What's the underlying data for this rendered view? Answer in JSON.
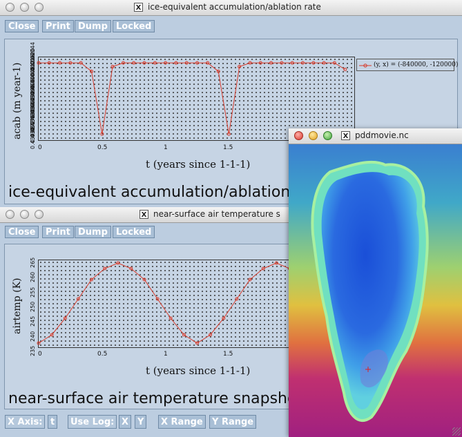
{
  "window1": {
    "title": "ice-equivalent accumulation/ablation rate",
    "toolbar": [
      "Close",
      "Print",
      "Dump",
      "Locked"
    ],
    "caption": "ice-equivalent accumulation/ablation",
    "legend_label": "(y, x) = (-840000, -120000)"
  },
  "window2": {
    "title": "near-surface air temperature s",
    "toolbar": [
      "Close",
      "Print",
      "Dump",
      "Locked"
    ],
    "caption": "near-surface air temperature snapsho",
    "bottom_bar": {
      "x_axis_label": "X Axis:",
      "x_axis_value": "t",
      "use_log_label": "Use Log:",
      "use_log_x": "X",
      "use_log_y": "Y",
      "x_range": "X Range",
      "y_range": "Y Range"
    }
  },
  "window3": {
    "title": "pddmovie.nc"
  },
  "icons": {
    "close": "close-dot-icon",
    "minimize": "minimize-dot-icon",
    "zoom": "zoom-dot-icon",
    "x11": "x11-icon",
    "resize": "resize-grip-icon"
  },
  "colors": {
    "series": "#d83a2a",
    "window_bg": "#bccde0",
    "button_bg": "#a9bfd6"
  },
  "chart_data": [
    {
      "type": "line",
      "xlabel": "t (years since 1-1-1)",
      "ylabel": "acab (m year-1)",
      "xticks": [
        "0",
        "0.5",
        "1",
        "1.5"
      ],
      "yticks": [
        "0.43968",
        "0.43972",
        "0.43976",
        "0.43980",
        "0.43984",
        "0.43988",
        "0.43992",
        "0.43996",
        "0.44000",
        "0.44004",
        "0.44008",
        "0.44012",
        "0.44016",
        "0.44020",
        "0.44044"
      ],
      "xlim": [
        0,
        2.5
      ],
      "ylim": [
        0.4396,
        0.4405
      ],
      "grid": true,
      "legend_position": "right",
      "series": [
        {
          "name": "(y, x) = (-840000, -120000)",
          "x": [
            0,
            0.083,
            0.167,
            0.25,
            0.333,
            0.417,
            0.5,
            0.583,
            0.667,
            0.75,
            0.833,
            0.917,
            1.0,
            1.083,
            1.167,
            1.25,
            1.333,
            1.417,
            1.5,
            1.583,
            1.667,
            1.75,
            1.833,
            1.917,
            2.0,
            2.083,
            2.167,
            2.25,
            2.333,
            2.417
          ],
          "y": [
            0.44044,
            0.44044,
            0.44044,
            0.44044,
            0.44044,
            0.44035,
            0.43968,
            0.4404,
            0.44044,
            0.44044,
            0.44044,
            0.44044,
            0.44044,
            0.44044,
            0.44044,
            0.44044,
            0.44044,
            0.44035,
            0.43968,
            0.4404,
            0.44044,
            0.44044,
            0.44044,
            0.44044,
            0.44044,
            0.44044,
            0.44044,
            0.44044,
            0.44044,
            0.44037
          ]
        }
      ]
    },
    {
      "type": "line",
      "xlabel": "t (years since 1-1-1)",
      "ylabel": "airtemp (K)",
      "xticks": [
        "0",
        "0.5",
        "1",
        "1.5"
      ],
      "yticks": [
        "235",
        "240",
        "245",
        "250",
        "255",
        "260",
        "265"
      ],
      "xlim": [
        0,
        2.0
      ],
      "ylim": [
        234,
        266
      ],
      "grid": true,
      "series": [
        {
          "x": [
            0,
            0.083,
            0.167,
            0.25,
            0.333,
            0.417,
            0.5,
            0.583,
            0.667,
            0.75,
            0.833,
            0.917,
            1.0,
            1.083,
            1.167,
            1.25,
            1.333,
            1.417,
            1.5,
            1.583,
            1.667,
            1.75,
            1.833,
            1.917,
            2.0
          ],
          "y": [
            236,
            239,
            245,
            252,
            259,
            263,
            265,
            263,
            259,
            252,
            245,
            239,
            236,
            239,
            245,
            252,
            259,
            263,
            265,
            263,
            259,
            252,
            245,
            239,
            236
          ]
        }
      ]
    }
  ]
}
